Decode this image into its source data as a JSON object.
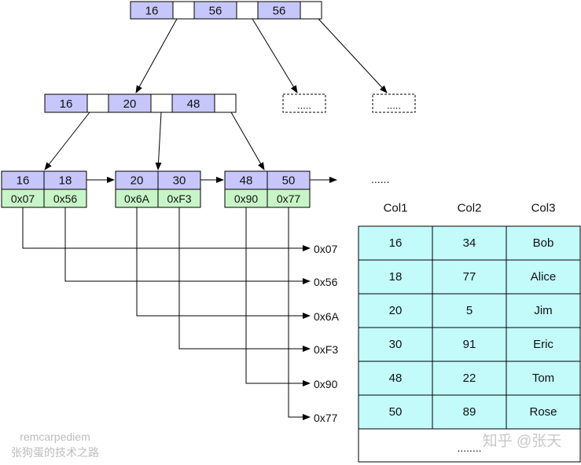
{
  "colors": {
    "key_fill": "#c6c6fa",
    "ptr_fill": "#c8f5c8",
    "row_fill": "#c3fbfb",
    "stroke": "#000000"
  },
  "root": {
    "keys": [
      "16",
      "56",
      "56"
    ]
  },
  "inner": {
    "keys": [
      "16",
      "20",
      "48"
    ]
  },
  "placeholder_nodes": [
    ".....",
    "....."
  ],
  "leaves": [
    {
      "keys": [
        "16",
        "18"
      ],
      "pointers": [
        "0x07",
        "0x56"
      ]
    },
    {
      "keys": [
        "20",
        "30"
      ],
      "pointers": [
        "0x6A",
        "0xF3"
      ]
    },
    {
      "keys": [
        "48",
        "50"
      ],
      "pointers": [
        "0x90",
        "0x77"
      ]
    }
  ],
  "leaf_continuation": "......",
  "pointer_targets": [
    "0x07",
    "0x56",
    "0x6A",
    "0xF3",
    "0x90",
    "0x77"
  ],
  "table": {
    "headers": [
      "Col1",
      "Col2",
      "Col3"
    ],
    "rows": [
      [
        "16",
        "34",
        "Bob"
      ],
      [
        "18",
        "77",
        "Alice"
      ],
      [
        "20",
        "5",
        "Jim"
      ],
      [
        "30",
        "91",
        "Eric"
      ],
      [
        "48",
        "22",
        "Tom"
      ],
      [
        "50",
        "89",
        "Rose"
      ]
    ],
    "more": "........"
  },
  "watermarks": {
    "author": "remcarpediem",
    "blog": "张狗蛋的技术之路",
    "zhihu": "知乎 @张天"
  }
}
